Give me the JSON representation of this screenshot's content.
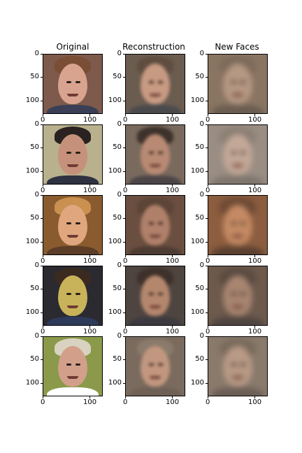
{
  "columns": [
    "Original",
    "Reconstruction",
    "New Faces"
  ],
  "y_ticks": [
    "0",
    "50",
    "100"
  ],
  "x_ticks": [
    "0",
    "100"
  ],
  "rows": [
    {
      "original": {
        "bg": "#7d5a4b",
        "skin": "#d8a38f",
        "hair": "#7a4e35",
        "shirt": "#3a3f55"
      },
      "reconstruction": {
        "bg": "#6b5c50",
        "skin": "#c79a82",
        "hair": "#5f4d40",
        "shirt": "#4a4a4d"
      },
      "new": {
        "bg": "#8a7562",
        "skin": "#b59883",
        "hair": "#7d6a59",
        "shirt": "#6a5c50"
      }
    },
    {
      "original": {
        "bg": "#b9b08d",
        "skin": "#c6917a",
        "hair": "#2a2220",
        "shirt": "#2f3240"
      },
      "reconstruction": {
        "bg": "#7a6a5d",
        "skin": "#b98a73",
        "hair": "#3d322c",
        "shirt": "#4b4548"
      },
      "new": {
        "bg": "#9a8e84",
        "skin": "#c3a897",
        "hair": "#8c7f74",
        "shirt": "#7f766d"
      }
    },
    {
      "original": {
        "bg": "#8a5b2e",
        "skin": "#e0a77f",
        "hair": "#c99050",
        "shirt": "#5b3d28"
      },
      "reconstruction": {
        "bg": "#6a4f40",
        "skin": "#b0806a",
        "hair": "#5c4436",
        "shirt": "#4d3c33"
      },
      "new": {
        "bg": "#8c5d3f",
        "skin": "#c48a63",
        "hair": "#6e4a35",
        "shirt": "#5a4030"
      }
    },
    {
      "original": {
        "bg": "#2a2a30",
        "skin": "#c9b35a",
        "hair": "#3a2a20",
        "shirt": "#2d3a5a"
      },
      "reconstruction": {
        "bg": "#4f4540",
        "skin": "#b4876d",
        "hair": "#3e302a",
        "shirt": "#3c3a40"
      },
      "new": {
        "bg": "#6d5a4d",
        "skin": "#a88571",
        "hair": "#5a4a40",
        "shirt": "#4f4440"
      }
    },
    {
      "original": {
        "bg": "#8a9a4a",
        "skin": "#d2a08a",
        "hair": "#d9d2c0",
        "shirt": "#ffffff"
      },
      "reconstruction": {
        "bg": "#7a6b5e",
        "skin": "#c2977f",
        "hair": "#8a7a6b",
        "shirt": "#6e6055"
      },
      "new": {
        "bg": "#8a7a6c",
        "skin": "#b89a86",
        "hair": "#7a6a5c",
        "shirt": "#6a5e55"
      }
    }
  ]
}
